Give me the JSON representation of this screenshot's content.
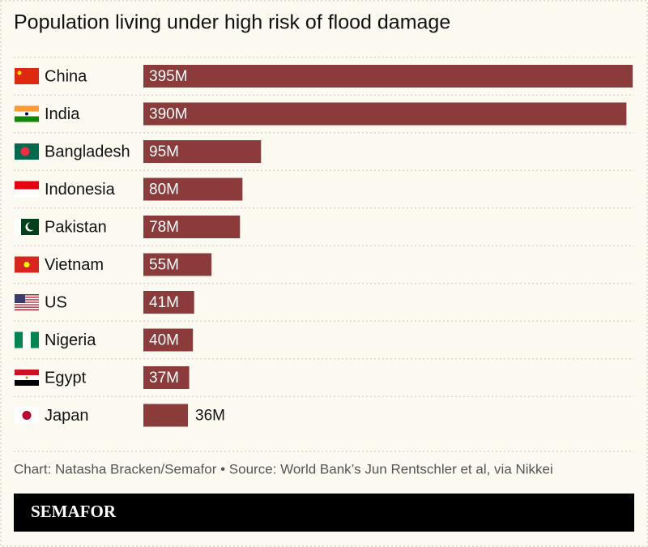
{
  "chart_data": {
    "type": "bar",
    "orientation": "horizontal",
    "title": "Population living under high risk of flood damage",
    "categories": [
      "China",
      "India",
      "Bangladesh",
      "Indonesia",
      "Pakistan",
      "Vietnam",
      "US",
      "Nigeria",
      "Egypt",
      "Japan"
    ],
    "values": [
      395,
      390,
      95,
      80,
      78,
      55,
      41,
      40,
      37,
      36
    ],
    "value_labels": [
      "395M",
      "390M",
      "95M",
      "80M",
      "78M",
      "55M",
      "41M",
      "40M",
      "37M",
      "36M"
    ],
    "color": "#8c3b3b",
    "source": "Chart: Natasha Bracken/Semafor • Source: World Bank’s Jun Rentschler et al, via Nikkei",
    "logo": "SEMAFOR"
  }
}
